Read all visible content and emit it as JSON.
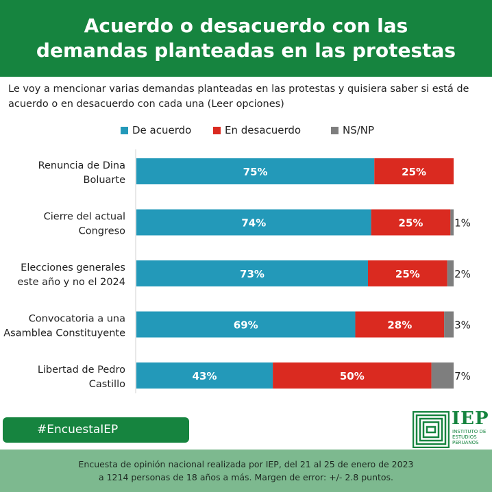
{
  "header": {
    "title": "Acuerdo o desacuerdo con las demandas planteadas en las protestas"
  },
  "question": "Le voy a mencionar varias demandas planteadas en las protestas y quisiera saber si está de acuerdo o en desacuerdo con cada una (Leer opciones)",
  "colors": {
    "agree": "#2399b9",
    "disagree": "#da2a20",
    "nsnp": "#7e7e7e",
    "brand": "#16843f"
  },
  "chart_data": {
    "type": "bar",
    "orientation": "horizontal",
    "stacked": true,
    "unit": "%",
    "xlim": [
      0,
      100
    ],
    "grid": false,
    "legend": "top",
    "categories": [
      [
        "Renuncia de Dina",
        "Boluarte"
      ],
      [
        "Cierre del actual",
        "Congreso"
      ],
      [
        "Elecciones generales",
        "este año y no el 2024"
      ],
      [
        "Convocatoria a una",
        "Asamblea Constituyente"
      ],
      [
        "Libertad de Pedro",
        "Castillo"
      ]
    ],
    "series": [
      {
        "name": "De acuerdo",
        "color": "#2399b9",
        "values": [
          75,
          74,
          73,
          69,
          43
        ]
      },
      {
        "name": "En desacuerdo",
        "color": "#da2a20",
        "values": [
          25,
          25,
          25,
          28,
          50
        ]
      },
      {
        "name": "NS/NP",
        "color": "#7e7e7e",
        "values": [
          0,
          1,
          2,
          3,
          7
        ]
      }
    ]
  },
  "hashtag": "#EncuestaIEP",
  "logo": {
    "name": "IEP",
    "subtitle": [
      "INSTITUTO DE",
      "ESTUDIOS",
      "PERUANOS"
    ]
  },
  "footer": {
    "line1": "Encuesta de opinión nacional realizada por IEP, del 21 al 25 de enero de 2023",
    "line2": "a 1214 personas de 18 años a más. Margen de error: +/- 2.8 puntos."
  }
}
